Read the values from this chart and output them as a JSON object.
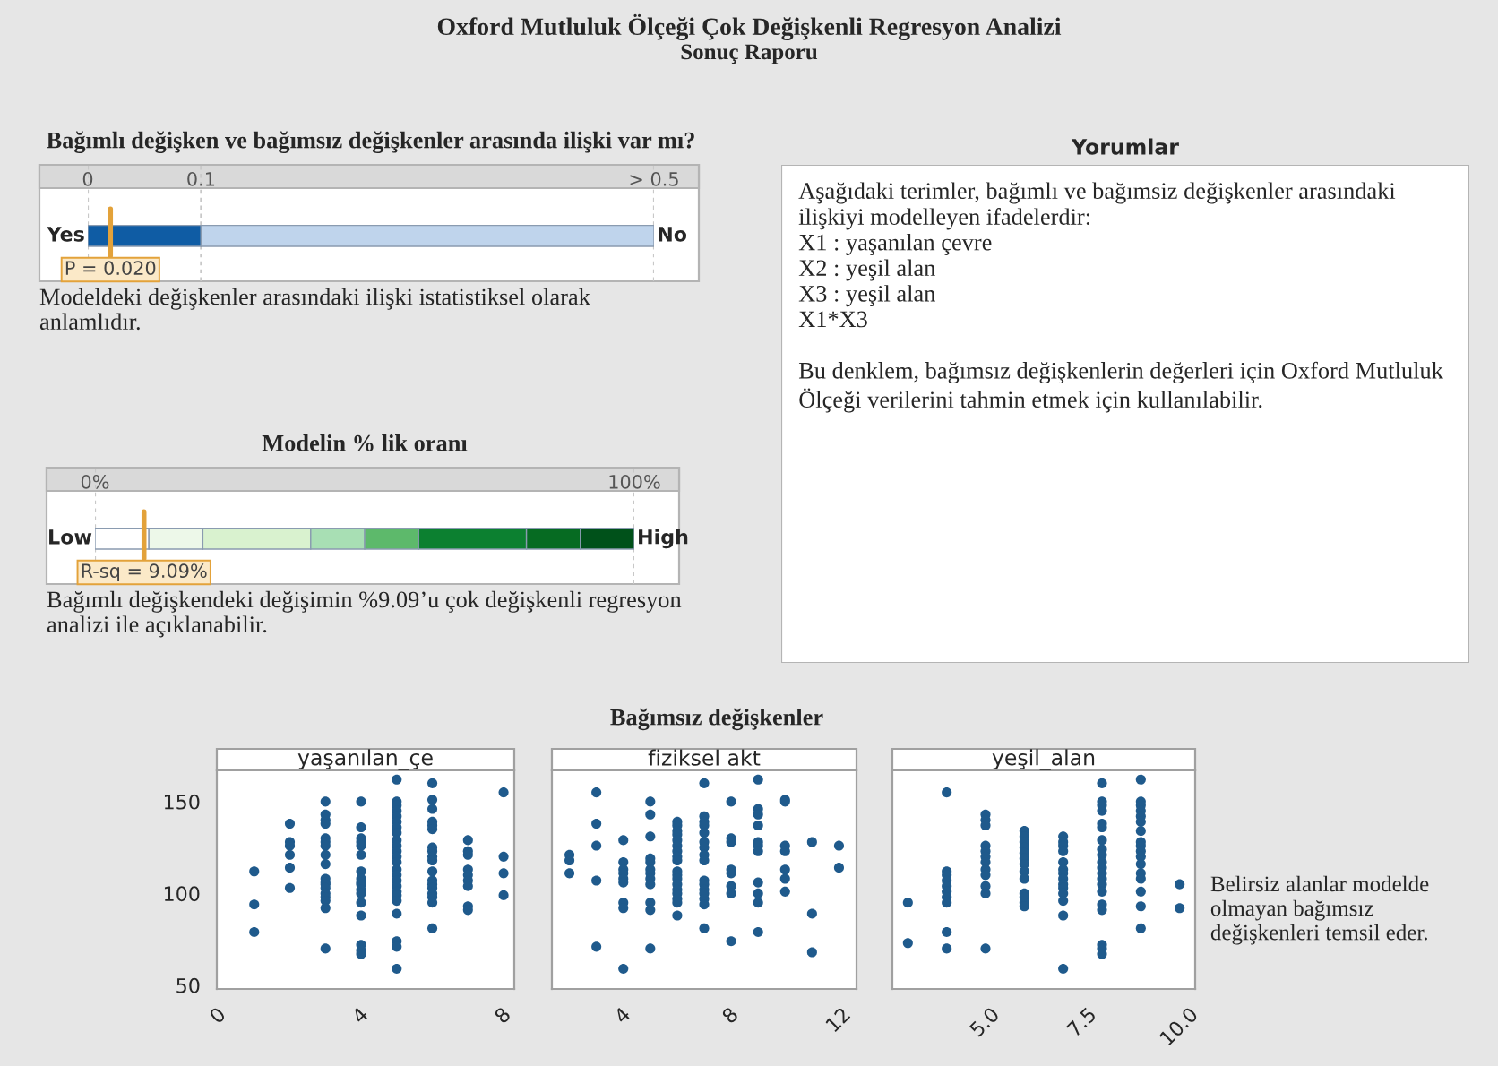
{
  "chart_data": [
    {
      "type": "other",
      "title": "Oxford Mutluluk Ölçeği Çok Değişkenli Regresyon Analizi",
      "subtitle": "Sonuç Raporu"
    },
    {
      "type": "bar",
      "orientation": "horizontal",
      "stacked": true,
      "title": "Bağımlı değişken ve bağımsız değişkenler arasında ilişki var mı?",
      "categories": [
        null
      ],
      "xlim": [
        0,
        0.5
      ],
      "xticks": [
        0,
        0.1,
        {
          "value": 0.5,
          "label": "> 0.5"
        }
      ],
      "grid": "x",
      "series": [
        {
          "color": "#0f5ca4",
          "values": [
            0.1
          ]
        },
        {
          "color": "#bfd4ec",
          "values": [
            0.4
          ]
        }
      ],
      "ref_lines": [
        {
          "axis": "x",
          "value": 0.02,
          "label": "P = 0.020",
          "color": "#e3a23a"
        }
      ],
      "annotations": [
        "Yes",
        "No",
        "Modeldeki değişkenler arasındaki ilişki istatistiksel olarak\nanlamlıdır."
      ]
    },
    {
      "type": "bar",
      "orientation": "horizontal",
      "stacked": true,
      "title": "Modelin % lik oranı",
      "categories": [
        null
      ],
      "xlim": [
        0,
        100
      ],
      "xticks": [
        {
          "value": 0,
          "label": "0%"
        },
        {
          "value": 100,
          "label": "100%"
        }
      ],
      "grid": "x",
      "series": [
        {
          "color": "#ffffff",
          "values": [
            10
          ]
        },
        {
          "color": "#edf8e9",
          "values": [
            10
          ]
        },
        {
          "color": "#d9f2cf",
          "values": [
            20
          ]
        },
        {
          "color": "#a8dfb4",
          "values": [
            10
          ]
        },
        {
          "color": "#5db96b",
          "values": [
            10
          ]
        },
        {
          "color": "#0c8030",
          "values": [
            20
          ]
        },
        {
          "color": "#066b22",
          "values": [
            10
          ]
        },
        {
          "color": "#00511a",
          "values": [
            10
          ]
        }
      ],
      "ref_lines": [
        {
          "axis": "x",
          "value": 9.09,
          "label": "R-sq = 9.09%",
          "color": "#e3a23a"
        }
      ],
      "annotations": [
        "Low",
        "High",
        "Bağımlı değişkendeki değişimin %9.09’u çok değişkenli regresyon\nanalizi ile açıklanabilir."
      ]
    },
    {
      "type": "other",
      "title": "Yorumlar",
      "annotations": [
        "Aşağıdaki terimler, bağımlı ve bağımsiz değişkenler arasındaki\nilişkiyi modelleyen ifadelerdir:\nX1 : yaşanılan çevre\nX2 : yeşil alan\nX3 : yeşil alan\nX1*X3",
        "Bu denklem, bağımsız değişkenlerin değerleri için Oxford Mutluluk\nÖlçeği verilerini tahmin etmek için kullanılabilir."
      ]
    },
    {
      "type": "other",
      "title": "Bağımsız değişkenler"
    },
    {
      "type": "scatter",
      "title": "yaşanılan_çe",
      "color": "#1f5a8c",
      "marker": "circle",
      "grid": false,
      "xlim": [
        -0.05,
        8.3
      ],
      "xticks": [
        0,
        4,
        8
      ],
      "ylim": [
        48,
        167
      ],
      "yticks": [
        50,
        100,
        150
      ],
      "x": [
        1,
        1,
        1,
        2,
        2,
        2,
        2,
        2,
        2,
        3,
        3,
        3,
        3,
        3,
        3,
        3,
        3,
        3,
        3,
        3,
        3,
        3,
        3,
        3,
        3,
        3,
        3,
        4,
        4,
        4,
        4,
        4,
        4,
        4,
        4,
        4,
        4,
        4,
        4,
        4,
        4,
        4,
        4,
        4,
        5,
        5,
        5,
        5,
        5,
        5,
        5,
        5,
        5,
        5,
        5,
        5,
        5,
        5,
        5,
        5,
        5,
        5,
        5,
        5,
        5,
        5,
        5,
        5,
        6,
        6,
        6,
        6,
        6,
        6,
        6,
        6,
        6,
        6,
        6,
        6,
        6,
        6,
        6,
        6,
        6,
        6,
        7,
        7,
        7,
        7,
        7,
        7,
        7,
        7,
        7,
        8,
        8,
        8,
        8
      ],
      "values": [
        112,
        94,
        79,
        138,
        128,
        126,
        121,
        114,
        103,
        150,
        143,
        140,
        138,
        130,
        128,
        126,
        121,
        116,
        108,
        106,
        105,
        103,
        100,
        98,
        96,
        92,
        70,
        150,
        136,
        130,
        128,
        126,
        121,
        112,
        108,
        106,
        105,
        102,
        100,
        95,
        88,
        72,
        69,
        67,
        162,
        150,
        148,
        145,
        142,
        139,
        136,
        133,
        129,
        126,
        123,
        120,
        117,
        113,
        110,
        107,
        104,
        101,
        99,
        96,
        89,
        74,
        71,
        59,
        160,
        151,
        146,
        139,
        137,
        135,
        125,
        123,
        120,
        118,
        112,
        107,
        105,
        103,
        100,
        98,
        95,
        81,
        129,
        123,
        121,
        113,
        110,
        107,
        104,
        93,
        91,
        155,
        120,
        111,
        99
      ]
    },
    {
      "type": "scatter",
      "title": "fiziksel akt",
      "color": "#1f5a8c",
      "marker": "circle",
      "grid": false,
      "tick_labels": "x",
      "xlim": [
        1.35,
        12.65
      ],
      "xticks": [
        4,
        8,
        12
      ],
      "ylim": [
        48,
        167
      ],
      "yticks": [
        50,
        100,
        150
      ],
      "x": [
        2,
        2,
        2,
        3,
        3,
        3,
        3,
        3,
        4,
        4,
        4,
        4,
        4,
        4,
        4,
        4,
        4,
        5,
        5,
        5,
        5,
        5,
        5,
        5,
        5,
        5,
        5,
        5,
        5,
        6,
        6,
        6,
        6,
        6,
        6,
        6,
        6,
        6,
        6,
        6,
        6,
        6,
        6,
        6,
        6,
        6,
        6,
        7,
        7,
        7,
        7,
        7,
        7,
        7,
        7,
        7,
        7,
        7,
        7,
        7,
        7,
        7,
        7,
        8,
        8,
        8,
        8,
        8,
        8,
        8,
        8,
        9,
        9,
        9,
        9,
        9,
        9,
        9,
        9,
        9,
        9,
        9,
        10,
        10,
        10,
        10,
        10,
        10,
        10,
        11,
        11,
        11,
        12,
        12
      ],
      "values": [
        121,
        118,
        111,
        155,
        138,
        126,
        107,
        71,
        129,
        117,
        113,
        111,
        108,
        106,
        95,
        92,
        59,
        150,
        143,
        131,
        119,
        117,
        113,
        111,
        108,
        105,
        95,
        91,
        70,
        139,
        137,
        134,
        132,
        129,
        126,
        123,
        120,
        118,
        112,
        110,
        108,
        105,
        102,
        100,
        97,
        95,
        88,
        160,
        142,
        139,
        137,
        133,
        128,
        125,
        121,
        118,
        107,
        105,
        102,
        100,
        97,
        94,
        81,
        150,
        130,
        128,
        113,
        111,
        104,
        100,
        74,
        162,
        146,
        143,
        137,
        128,
        126,
        123,
        106,
        100,
        95,
        79,
        151,
        150,
        126,
        123,
        113,
        108,
        101,
        128,
        89,
        68,
        126,
        114
      ]
    },
    {
      "type": "scatter",
      "title": "yeşil_alan",
      "color": "#1f5a8c",
      "marker": "circle",
      "grid": false,
      "tick_labels": "x",
      "xlim": [
        2.6,
        10.4
      ],
      "xticks": [
        {
          "value": 5,
          "label": "5.0"
        },
        7.5,
        {
          "value": 10,
          "label": "10.0"
        }
      ],
      "ylim": [
        48,
        167
      ],
      "yticks": [
        50,
        100,
        150
      ],
      "annotations": [
        "Belirsiz alanlar modelde\nolmayan bağımsız\ndeğişkenleri temsil eder."
      ],
      "x": [
        3,
        3,
        4,
        4,
        4,
        4,
        4,
        4,
        4,
        4,
        4,
        4,
        5,
        5,
        5,
        5,
        5,
        5,
        5,
        5,
        5,
        5,
        5,
        5,
        6,
        6,
        6,
        6,
        6,
        6,
        6,
        6,
        6,
        6,
        6,
        6,
        6,
        7,
        7,
        7,
        7,
        7,
        7,
        7,
        7,
        7,
        7,
        7,
        7,
        7,
        7,
        8,
        8,
        8,
        8,
        8,
        8,
        8,
        8,
        8,
        8,
        8,
        8,
        8,
        8,
        8,
        8,
        8,
        8,
        8,
        8,
        9,
        9,
        9,
        9,
        9,
        9,
        9,
        9,
        9,
        9,
        9,
        9,
        9,
        9,
        9,
        9,
        9,
        10,
        10
      ],
      "values": [
        95,
        73,
        155,
        112,
        110,
        107,
        104,
        101,
        98,
        95,
        79,
        70,
        143,
        140,
        137,
        126,
        123,
        120,
        117,
        113,
        110,
        104,
        100,
        70,
        134,
        131,
        128,
        125,
        122,
        119,
        116,
        112,
        108,
        100,
        98,
        95,
        93,
        131,
        128,
        126,
        123,
        117,
        113,
        111,
        108,
        105,
        103,
        100,
        96,
        88,
        59,
        160,
        150,
        148,
        145,
        138,
        136,
        129,
        124,
        121,
        117,
        114,
        111,
        108,
        105,
        101,
        94,
        91,
        72,
        70,
        67,
        162,
        150,
        148,
        145,
        142,
        139,
        134,
        128,
        126,
        123,
        120,
        116,
        111,
        108,
        101,
        93,
        81,
        105,
        92
      ]
    }
  ]
}
